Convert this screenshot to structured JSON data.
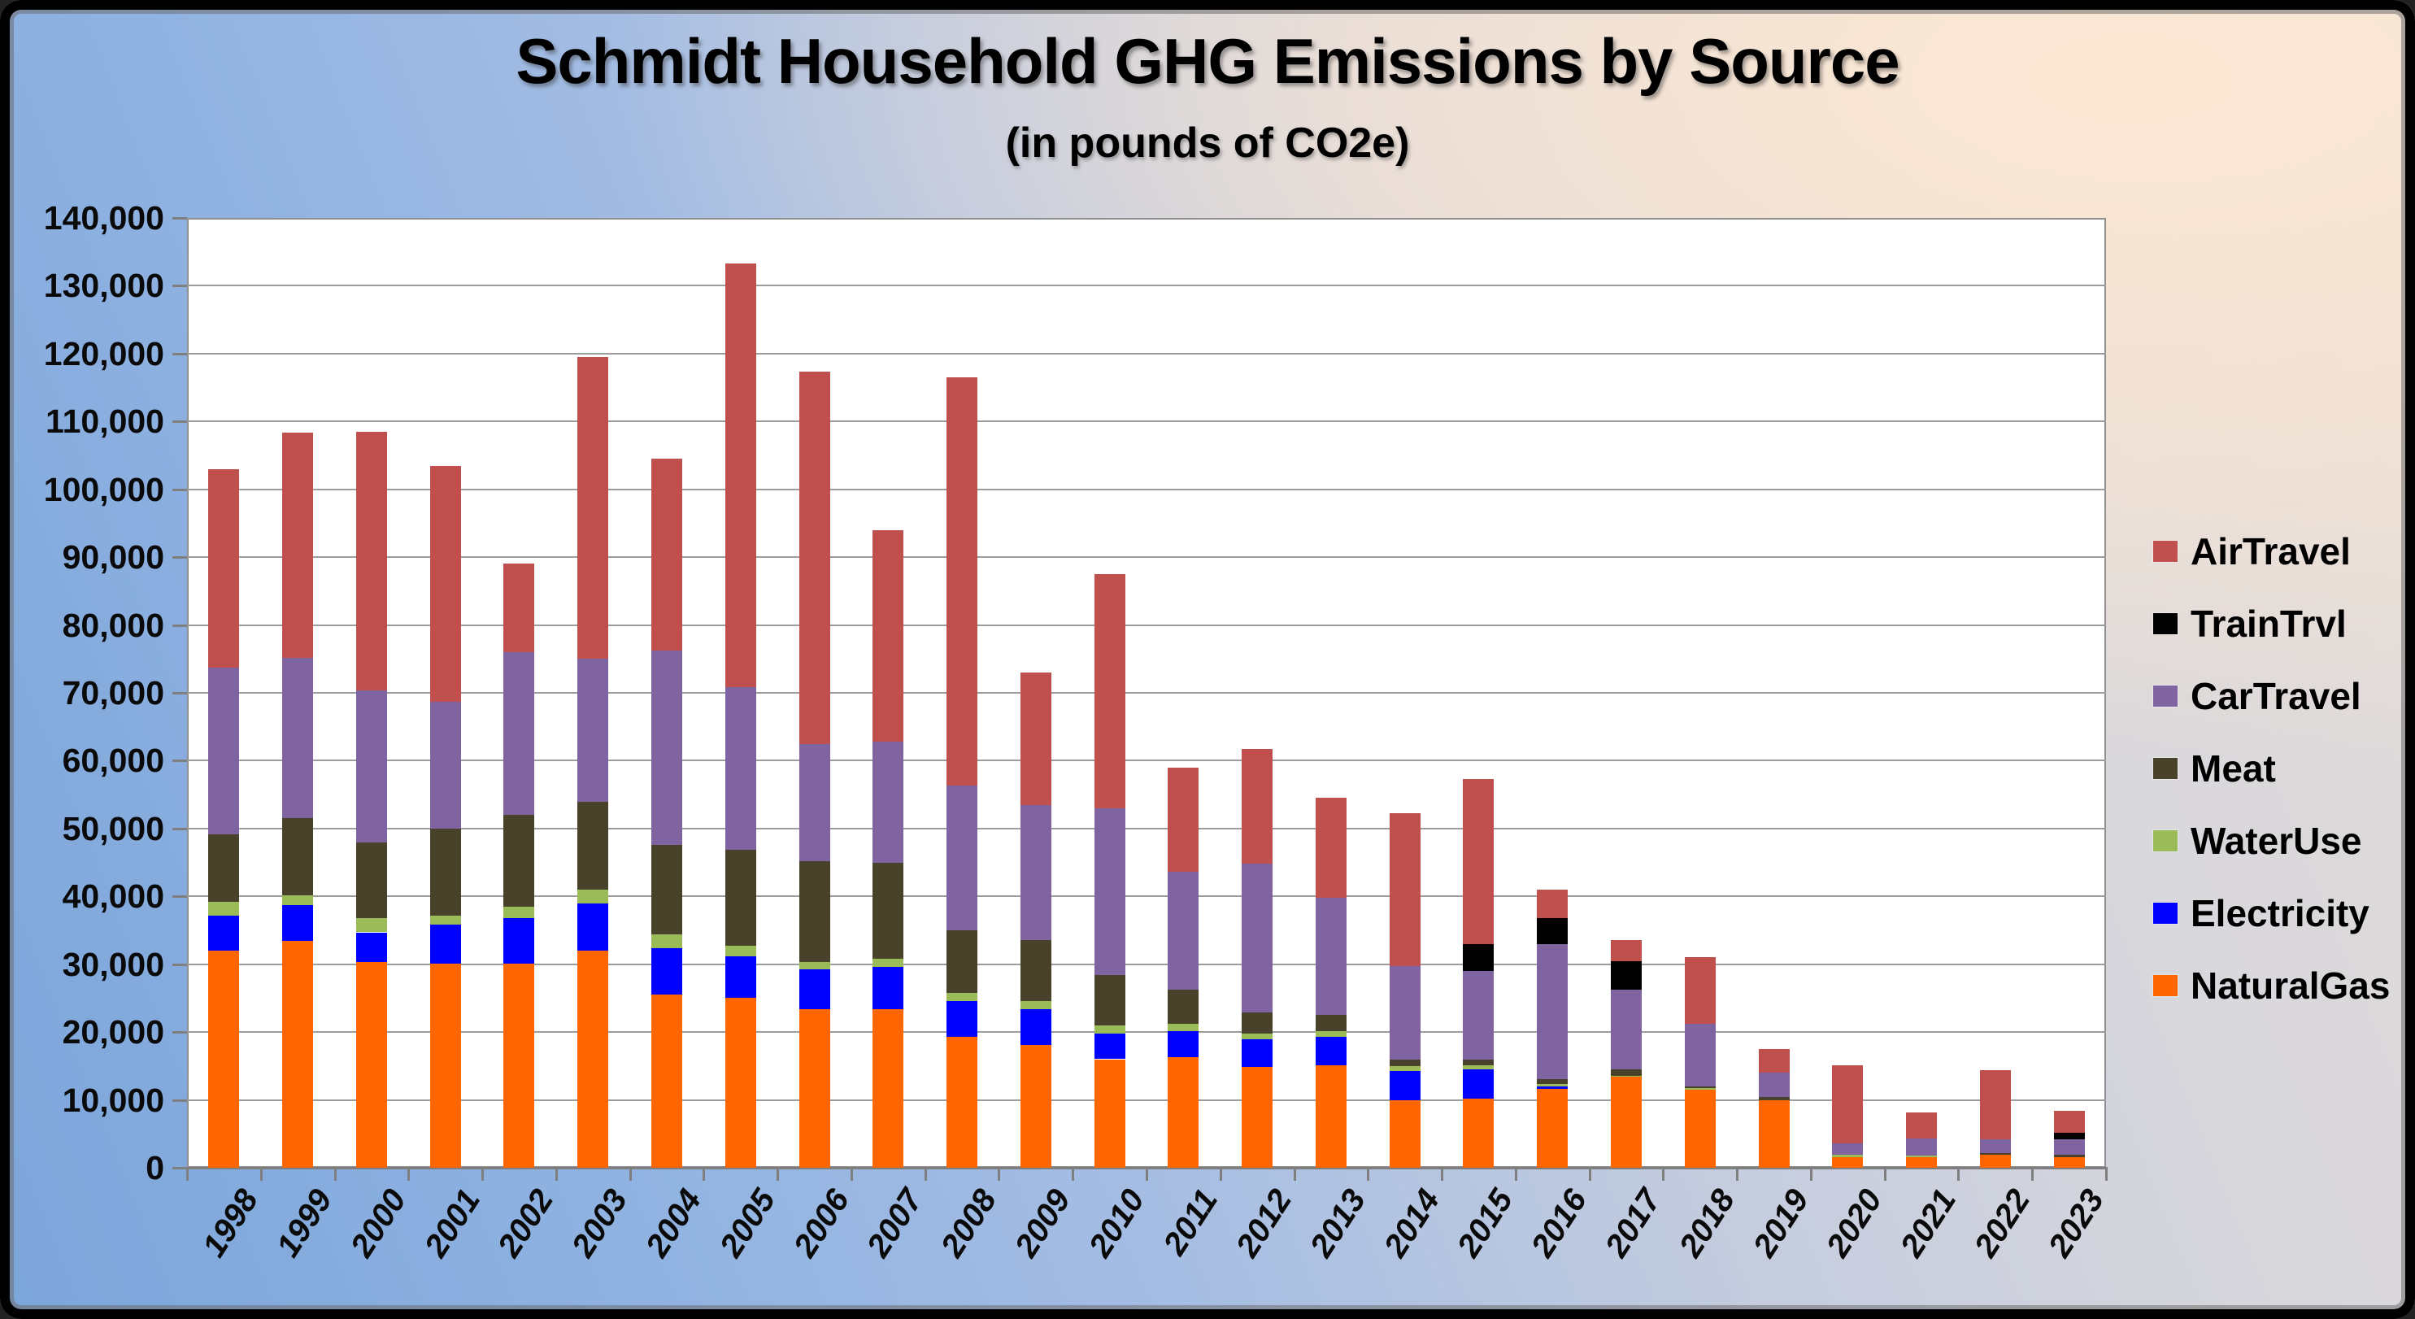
{
  "chart_data": {
    "type": "bar",
    "variant": "stacked-vertical",
    "title": "Schmidt Household GHG Emissions by Source",
    "subtitle": "(in pounds of CO2e)",
    "categories": [
      "1998",
      "1999",
      "2000",
      "2001",
      "2002",
      "2003",
      "2004",
      "2005",
      "2006",
      "2007",
      "2008",
      "2009",
      "2010",
      "2011",
      "2012",
      "2013",
      "2014",
      "2015",
      "2016",
      "2017",
      "2018",
      "2019",
      "2020",
      "2021",
      "2022",
      "2023"
    ],
    "series": [
      {
        "name": "NaturalGas",
        "color": "#FF6600",
        "values": [
          32000,
          33400,
          30300,
          30100,
          30100,
          32000,
          25500,
          25000,
          23400,
          23400,
          19300,
          18100,
          16000,
          16300,
          14900,
          15100,
          10000,
          10200,
          11600,
          13400,
          11500,
          10000,
          1600,
          1600,
          1900,
          1600
        ]
      },
      {
        "name": "Electricity",
        "color": "#0000FF",
        "values": [
          5200,
          5300,
          4400,
          5700,
          6700,
          7000,
          6900,
          6200,
          5900,
          6200,
          5300,
          5300,
          3800,
          3800,
          4000,
          4200,
          4300,
          4300,
          400,
          0,
          0,
          0,
          0,
          0,
          0,
          0
        ]
      },
      {
        "name": "WaterUse",
        "color": "#9BBB59",
        "values": [
          2000,
          1400,
          2100,
          1300,
          1700,
          2000,
          2000,
          1500,
          1000,
          1200,
          1200,
          1200,
          1200,
          1100,
          900,
          800,
          700,
          600,
          400,
          200,
          250,
          0,
          300,
          250,
          0,
          0
        ]
      },
      {
        "name": "Meat",
        "color": "#474229",
        "values": [
          10000,
          11400,
          11200,
          12900,
          13500,
          12900,
          13200,
          14200,
          14900,
          14200,
          9200,
          9000,
          7400,
          5100,
          3100,
          2400,
          900,
          800,
          700,
          900,
          250,
          400,
          0,
          0,
          250,
          300
        ]
      },
      {
        "name": "CarTravel",
        "color": "#8064A2",
        "values": [
          24500,
          23600,
          22400,
          18700,
          24000,
          21100,
          28600,
          23900,
          17300,
          17800,
          21300,
          19900,
          24600,
          17300,
          21900,
          17300,
          13800,
          13100,
          19900,
          11800,
          9200,
          3600,
          1700,
          2500,
          2100,
          2300
        ]
      },
      {
        "name": "TrainTrvl",
        "color": "#000000",
        "values": [
          0,
          0,
          0,
          0,
          0,
          0,
          0,
          0,
          0,
          0,
          0,
          0,
          0,
          0,
          0,
          0,
          0,
          4000,
          3800,
          4200,
          0,
          0,
          0,
          0,
          0,
          1000
        ]
      },
      {
        "name": "AirTravel",
        "color": "#C0504D",
        "values": [
          29300,
          33200,
          38100,
          34800,
          13000,
          44500,
          28300,
          62500,
          54800,
          31200,
          60200,
          19500,
          34500,
          15400,
          16900,
          14700,
          22600,
          24300,
          4200,
          3100,
          9800,
          3500,
          11500,
          3750,
          10150,
          3200
        ]
      }
    ],
    "legend": {
      "position": "right",
      "order": [
        "AirTravel",
        "TrainTrvl",
        "CarTravel",
        "Meat",
        "WaterUse",
        "Electricity",
        "NaturalGas"
      ]
    },
    "y_axis": {
      "min": 0,
      "max": 140000,
      "step": 10000,
      "tick_labels": [
        "0",
        "10,000",
        "20,000",
        "30,000",
        "40,000",
        "50,000",
        "60,000",
        "70,000",
        "80,000",
        "90,000",
        "100,000",
        "110,000",
        "120,000",
        "130,000",
        "140,000"
      ]
    },
    "x_axis": {
      "label_rotation_deg": -57,
      "style": "italic"
    },
    "grid": true,
    "plot_background": "#FFFFFF",
    "frame_border_color": "#000000"
  }
}
